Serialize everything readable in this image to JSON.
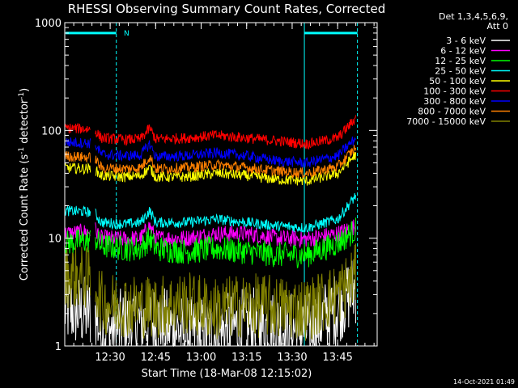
{
  "chart_data": {
    "type": "line",
    "title": "RHESSI Observing Summary Count Rates, Corrected",
    "xlabel": "Start Time (18-Mar-08 12:15:02)",
    "ylabel_main": "Corrected Count Rate (s",
    "ylabel_exp1": "-1",
    "ylabel_mid": " detector",
    "ylabel_exp2": "-1",
    "ylabel_end": ")",
    "footer": "14-Oct-2021 01:49",
    "x_unit": "minutes since 12:15:02",
    "xlim": [
      0,
      103
    ],
    "ylim": [
      1,
      1000
    ],
    "y_scale": "log",
    "x_ticks": [
      {
        "value": 14.97,
        "label": "12:30"
      },
      {
        "value": 29.97,
        "label": "12:45"
      },
      {
        "value": 44.97,
        "label": "13:00"
      },
      {
        "value": 59.97,
        "label": "13:15"
      },
      {
        "value": 74.97,
        "label": "13:30"
      },
      {
        "value": 89.97,
        "label": "13:45"
      }
    ],
    "y_ticks": [
      {
        "value": 1,
        "label": "1"
      },
      {
        "value": 10,
        "label": "10"
      },
      {
        "value": 100,
        "label": "100"
      },
      {
        "value": 1000,
        "label": "1000"
      }
    ],
    "legend_header": [
      "Det 1,3,4,5,6,9,",
      "Att 0"
    ],
    "legend_position": "right",
    "annotation_label": "N",
    "series": [
      {
        "name": "3 - 6 keV",
        "color": "#ffffff",
        "points": [
          [
            0,
            2.2
          ],
          [
            8,
            2.0
          ],
          [
            10,
            2.1
          ],
          [
            12,
            1.3
          ],
          [
            20,
            1.6
          ],
          [
            30,
            1.7
          ],
          [
            40,
            1.3
          ],
          [
            50,
            1.3
          ],
          [
            60,
            1.6
          ],
          [
            70,
            1.5
          ],
          [
            80,
            1.4
          ],
          [
            90,
            2.3
          ],
          [
            96,
            3.5
          ]
        ]
      },
      {
        "name": "6 - 12 keV",
        "color": "#ff00ff",
        "points": [
          [
            0,
            11
          ],
          [
            8,
            11.5
          ],
          [
            10,
            12
          ],
          [
            12,
            10
          ],
          [
            20,
            9.8
          ],
          [
            25,
            10
          ],
          [
            28,
            13
          ],
          [
            30,
            10
          ],
          [
            40,
            10
          ],
          [
            50,
            11
          ],
          [
            60,
            11
          ],
          [
            70,
            10
          ],
          [
            80,
            9.8
          ],
          [
            90,
            11
          ],
          [
            96,
            13
          ]
        ]
      },
      {
        "name": "12 - 25 keV",
        "color": "#00ff00",
        "points": [
          [
            0,
            9
          ],
          [
            8,
            9.5
          ],
          [
            10,
            10
          ],
          [
            12,
            8.5
          ],
          [
            20,
            8
          ],
          [
            25,
            8
          ],
          [
            28,
            10
          ],
          [
            30,
            8
          ],
          [
            40,
            7.5
          ],
          [
            50,
            8
          ],
          [
            60,
            7.5
          ],
          [
            70,
            7
          ],
          [
            80,
            7
          ],
          [
            90,
            9
          ],
          [
            96,
            12
          ]
        ]
      },
      {
        "name": "25 - 50 keV",
        "color": "#00ffff",
        "points": [
          [
            0,
            18
          ],
          [
            8,
            17.5
          ],
          [
            10,
            17
          ],
          [
            12,
            14
          ],
          [
            20,
            13.5
          ],
          [
            25,
            14
          ],
          [
            28,
            18
          ],
          [
            30,
            14
          ],
          [
            40,
            14
          ],
          [
            50,
            15
          ],
          [
            60,
            14
          ],
          [
            70,
            13
          ],
          [
            80,
            12.5
          ],
          [
            90,
            15
          ],
          [
            96,
            25
          ]
        ]
      },
      {
        "name": "50 - 100 keV",
        "color": "#ffff00",
        "points": [
          [
            0,
            45
          ],
          [
            8,
            44
          ],
          [
            10,
            43
          ],
          [
            12,
            38
          ],
          [
            20,
            37
          ],
          [
            25,
            38
          ],
          [
            28,
            45
          ],
          [
            30,
            37
          ],
          [
            40,
            37
          ],
          [
            50,
            40
          ],
          [
            60,
            38
          ],
          [
            70,
            35
          ],
          [
            80,
            34
          ],
          [
            90,
            40
          ],
          [
            96,
            60
          ]
        ]
      },
      {
        "name": "100 - 300 keV",
        "color": "#ff0000",
        "points": [
          [
            0,
            105
          ],
          [
            8,
            103
          ],
          [
            10,
            100
          ],
          [
            12,
            85
          ],
          [
            20,
            82
          ],
          [
            25,
            83
          ],
          [
            28,
            105
          ],
          [
            30,
            83
          ],
          [
            40,
            85
          ],
          [
            50,
            90
          ],
          [
            60,
            85
          ],
          [
            70,
            80
          ],
          [
            80,
            75
          ],
          [
            90,
            85
          ],
          [
            96,
            130
          ]
        ]
      },
      {
        "name": "300 - 800 keV",
        "color": "#0000ff",
        "points": [
          [
            0,
            78
          ],
          [
            8,
            76
          ],
          [
            10,
            75
          ],
          [
            12,
            60
          ],
          [
            20,
            58
          ],
          [
            25,
            59
          ],
          [
            28,
            75
          ],
          [
            30,
            57
          ],
          [
            40,
            58
          ],
          [
            50,
            62
          ],
          [
            60,
            58
          ],
          [
            70,
            52
          ],
          [
            80,
            50
          ],
          [
            90,
            58
          ],
          [
            96,
            85
          ]
        ]
      },
      {
        "name": "800 - 7000 keV",
        "color": "#ff8000",
        "points": [
          [
            0,
            58
          ],
          [
            8,
            56
          ],
          [
            10,
            55
          ],
          [
            12,
            45
          ],
          [
            20,
            44
          ],
          [
            25,
            45
          ],
          [
            28,
            57
          ],
          [
            30,
            44
          ],
          [
            40,
            45
          ],
          [
            50,
            48
          ],
          [
            60,
            45
          ],
          [
            70,
            42
          ],
          [
            80,
            40
          ],
          [
            90,
            46
          ],
          [
            96,
            70
          ]
        ]
      },
      {
        "name": "7000 - 15000 keV",
        "color": "#808000",
        "points": [
          [
            0,
            4.5
          ],
          [
            8,
            4.2
          ],
          [
            10,
            4
          ],
          [
            12,
            2.5
          ],
          [
            20,
            2.4
          ],
          [
            30,
            2.3
          ],
          [
            40,
            2.5
          ],
          [
            50,
            2.2
          ],
          [
            60,
            2.4
          ],
          [
            70,
            2.3
          ],
          [
            80,
            2.2
          ],
          [
            90,
            3
          ],
          [
            96,
            4.5
          ]
        ]
      }
    ],
    "attenuator_segments": [
      {
        "x": [
          0.3,
          17
        ],
        "y": 800,
        "color": "#00ffff"
      },
      {
        "x": [
          79,
          96.5
        ],
        "y": 800,
        "color": "#00ffff"
      }
    ],
    "vertical_markers": [
      {
        "x": 17,
        "style": "dashed",
        "color": "#00ffff"
      },
      {
        "x": 79,
        "style": "solid",
        "color": "#00ffff"
      },
      {
        "x": 96.5,
        "style": "dashed",
        "color": "#00ffff"
      }
    ],
    "gaps": [
      [
        8.5,
        10
      ]
    ]
  }
}
